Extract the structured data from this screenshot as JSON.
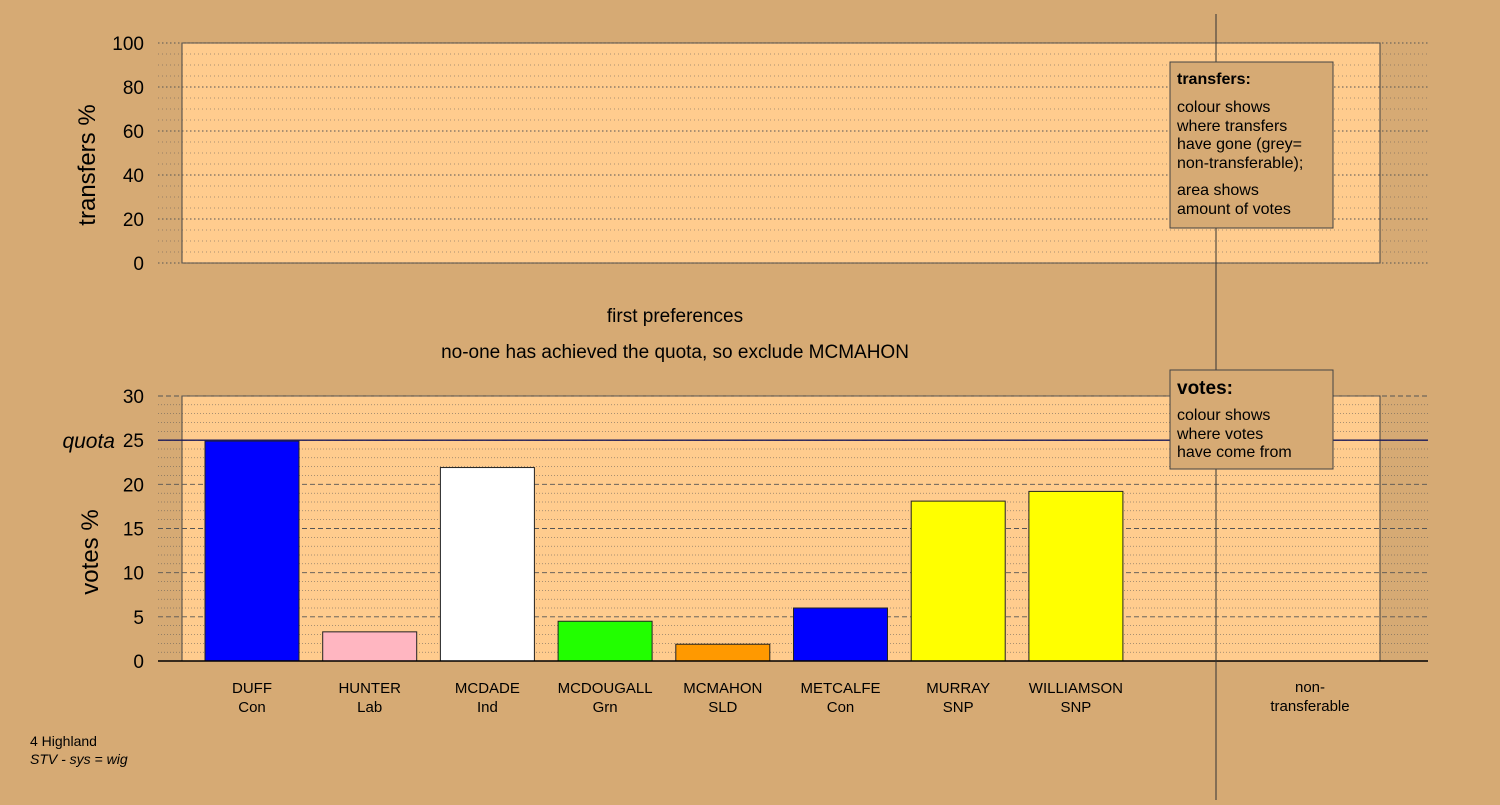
{
  "chart_data": [
    {
      "type": "bar",
      "panel": "transfers",
      "ylabel": "transfers %",
      "ylim": [
        0,
        100
      ],
      "yticks": [
        0,
        20,
        40,
        60,
        80,
        100
      ],
      "grid": true,
      "legend": {
        "placement": "top-right",
        "title": "transfers:",
        "lines": [
          "colour shows",
          "where transfers",
          "have gone (grey=",
          "non-transferable);"
        ],
        "lines2": [
          "area shows",
          "amount of votes"
        ]
      },
      "values": []
    },
    {
      "type": "bar",
      "panel": "votes",
      "title": "first preferences",
      "subtitle": "no-one has achieved the quota, so exclude MCMAHON",
      "ylabel": "votes %",
      "ylim": [
        0,
        30
      ],
      "yticks": [
        0,
        5,
        10,
        15,
        20,
        25,
        30
      ],
      "grid": true,
      "quota": {
        "label": "quota",
        "value": 25
      },
      "legend": {
        "placement": "top-right",
        "title": "votes:",
        "lines": [
          "colour shows",
          "where votes",
          "have come from"
        ]
      },
      "categories": [
        {
          "name": "DUFF",
          "party": "Con",
          "color": "#0000ff"
        },
        {
          "name": "HUNTER",
          "party": "Lab",
          "color": "#ffb6c1"
        },
        {
          "name": "MCDADE",
          "party": "Ind",
          "color": "#ffffff"
        },
        {
          "name": "MCDOUGALL",
          "party": "Grn",
          "color": "#22ff00"
        },
        {
          "name": "MCMAHON",
          "party": "SLD",
          "color": "#ff9900"
        },
        {
          "name": "METCALFE",
          "party": "Con",
          "color": "#0000ff"
        },
        {
          "name": "MURRAY",
          "party": "SNP",
          "color": "#ffff00"
        },
        {
          "name": "WILLIAMSON",
          "party": "SNP",
          "color": "#ffff00"
        }
      ],
      "values": [
        24.9,
        3.3,
        21.9,
        4.5,
        1.9,
        6.0,
        18.1,
        19.2
      ],
      "nontransferable": {
        "line1": "non-",
        "line2": "transferable"
      }
    }
  ],
  "footer": {
    "line1": "4 Highland",
    "line2": "STV - sys = wig"
  },
  "colors": {
    "background": "#d6aa74",
    "plot_area": "#ffcc8e"
  }
}
